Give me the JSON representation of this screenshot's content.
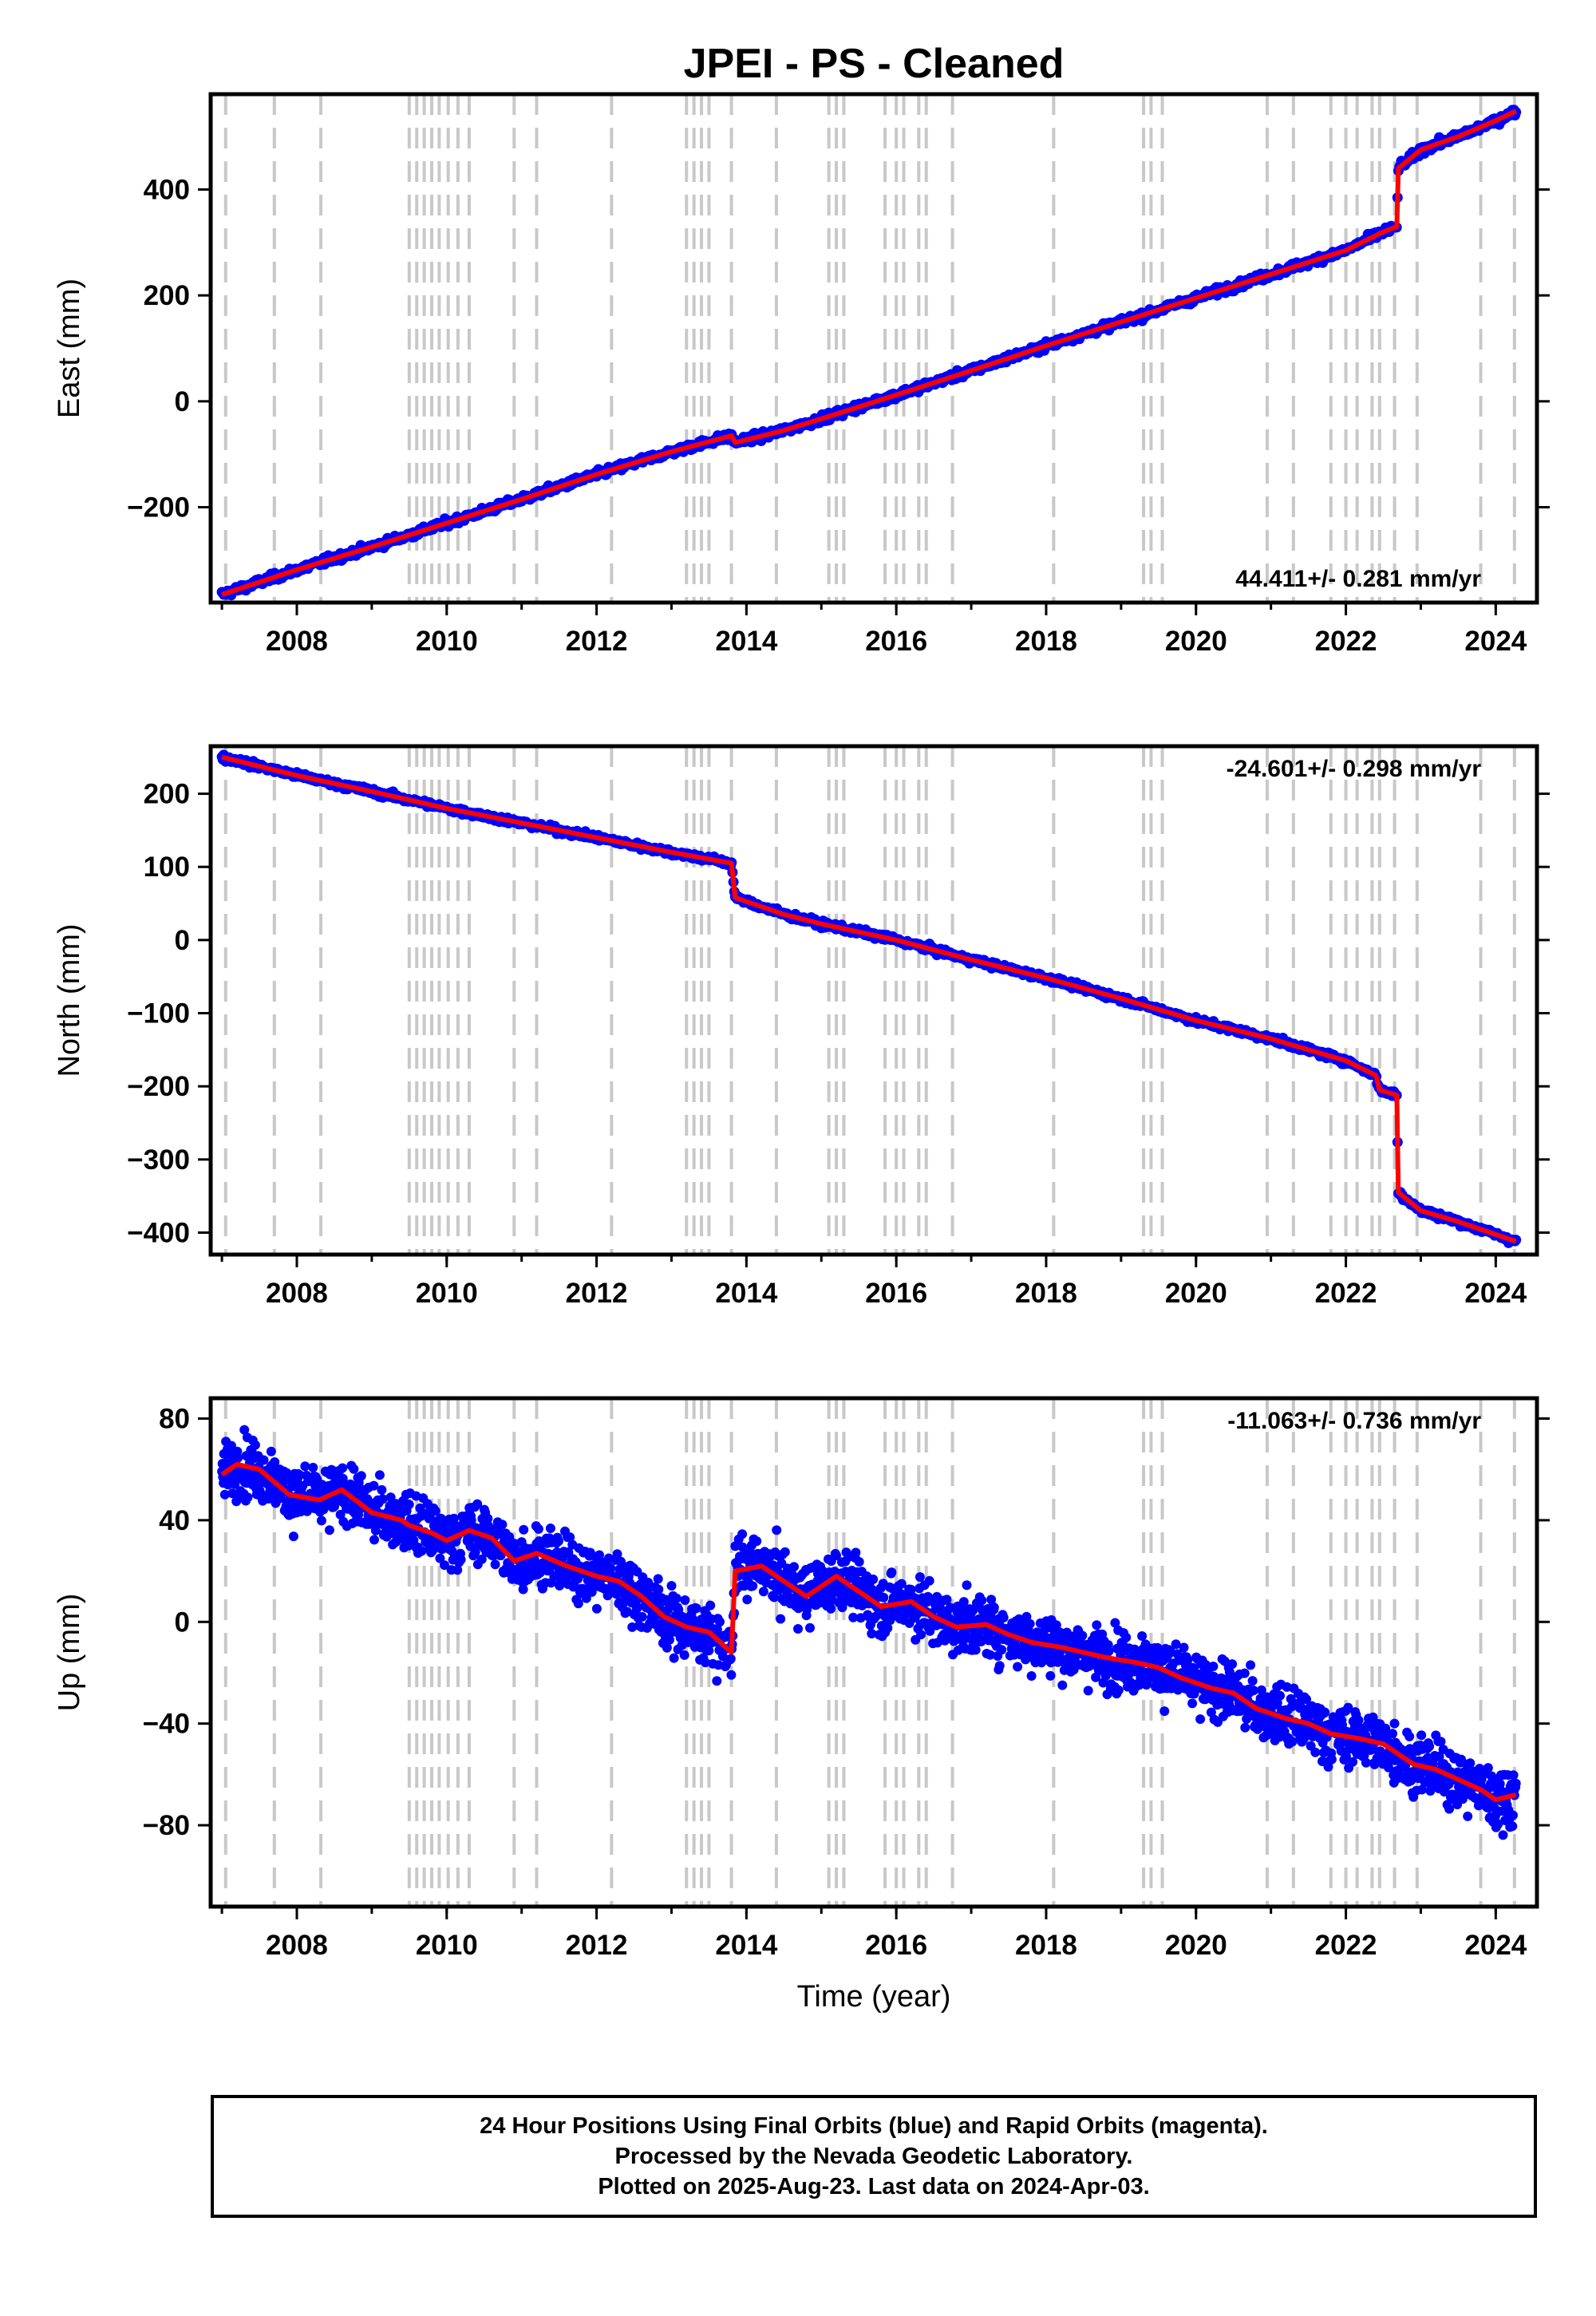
{
  "title": "JPEI  - PS - Cleaned",
  "colors": {
    "daily_positions": "#0000ff",
    "model_fit": "#ff0000",
    "event_lines": "#c8c8c8",
    "frame": "#000000"
  },
  "chart_data": [
    {
      "type": "scatter",
      "component": "east",
      "title": "JPEI  - PS - Cleaned",
      "xlabel": "",
      "ylabel": "East (mm)",
      "xlim": [
        2006.85,
        2024.55
      ],
      "ylim": [
        -380,
        580
      ],
      "x_ticks": [
        2008,
        2010,
        2012,
        2014,
        2016,
        2018,
        2020,
        2022,
        2024
      ],
      "x_tick_labels": [
        "2008",
        "2010",
        "2012",
        "2014",
        "2016",
        "2018",
        "2020",
        "2022",
        "2024"
      ],
      "y_ticks": [
        -200,
        0,
        200,
        400
      ],
      "y_tick_labels": [
        "−200",
        "0",
        "200",
        "400"
      ],
      "rate_label": "44.411+/- 0.281 mm/yr",
      "rate_label_position": "bottom-right",
      "series": [
        {
          "style": "points",
          "color": "#0000ff",
          "noise_mm": 5
        },
        {
          "style": "line",
          "color": "#ff0000",
          "x": [
            2007.0,
            2008.0,
            2009.0,
            2010.0,
            2011.0,
            2012.0,
            2013.0,
            2013.8,
            2013.85,
            2014.5,
            2015.0,
            2016.0,
            2017.0,
            2018.0,
            2019.0,
            2020.0,
            2021.0,
            2022.0,
            2022.5,
            2022.68,
            2022.7,
            2023.0,
            2023.5,
            2024.0,
            2024.27
          ],
          "y": [
            -365,
            -318,
            -275,
            -230,
            -185,
            -138,
            -95,
            -65,
            -78,
            -55,
            -33,
            12,
            58,
            105,
            150,
            195,
            240,
            285,
            320,
            330,
            440,
            475,
            500,
            530,
            548
          ]
        }
      ]
    },
    {
      "type": "scatter",
      "component": "north",
      "xlabel": "",
      "ylabel": "North (mm)",
      "xlim": [
        2006.85,
        2024.55
      ],
      "ylim": [
        -430,
        265
      ],
      "x_ticks": [
        2008,
        2010,
        2012,
        2014,
        2016,
        2018,
        2020,
        2022,
        2024
      ],
      "x_tick_labels": [
        "2008",
        "2010",
        "2012",
        "2014",
        "2016",
        "2018",
        "2020",
        "2022",
        "2024"
      ],
      "y_ticks": [
        -400,
        -300,
        -200,
        -100,
        0,
        100,
        200
      ],
      "y_tick_labels": [
        "−400",
        "−300",
        "−200",
        "−100",
        "0",
        "100",
        "200"
      ],
      "rate_label": "-24.601+/- 0.298 mm/yr",
      "rate_label_position": "top-right",
      "series": [
        {
          "style": "points",
          "color": "#0000ff",
          "noise_mm": 3
        },
        {
          "style": "line",
          "color": "#ff0000",
          "x": [
            2007.0,
            2008.0,
            2009.0,
            2010.0,
            2011.0,
            2012.0,
            2013.0,
            2013.8,
            2013.85,
            2014.5,
            2015.0,
            2016.0,
            2017.0,
            2018.0,
            2019.0,
            2020.0,
            2021.0,
            2022.0,
            2022.4,
            2022.45,
            2022.68,
            2022.7,
            2023.0,
            2023.5,
            2024.27
          ],
          "y": [
            250,
            225,
            203,
            180,
            160,
            140,
            120,
            105,
            58,
            35,
            22,
            0,
            -27,
            -52,
            -80,
            -110,
            -135,
            -165,
            -185,
            -205,
            -212,
            -345,
            -370,
            -385,
            -412
          ]
        }
      ]
    },
    {
      "type": "scatter",
      "component": "up",
      "xlabel": "Time (year)",
      "ylabel": "Up (mm)",
      "xlim": [
        2006.85,
        2024.55
      ],
      "ylim": [
        -112,
        88
      ],
      "x_ticks": [
        2008,
        2010,
        2012,
        2014,
        2016,
        2018,
        2020,
        2022,
        2024
      ],
      "x_tick_labels": [
        "2008",
        "2010",
        "2012",
        "2014",
        "2016",
        "2018",
        "2020",
        "2022",
        "2024"
      ],
      "y_ticks": [
        -80,
        -40,
        0,
        40,
        80
      ],
      "y_tick_labels": [
        "−80",
        "−40",
        "0",
        "40",
        "80"
      ],
      "rate_label": "-11.063+/- 0.736 mm/yr",
      "rate_label_position": "top-right",
      "series": [
        {
          "style": "points",
          "color": "#0000ff",
          "noise_mm": 8
        },
        {
          "style": "line",
          "color": "#ff0000",
          "x": [
            2007.0,
            2007.2,
            2007.5,
            2007.9,
            2008.3,
            2008.6,
            2009.0,
            2009.4,
            2009.5,
            2009.8,
            2010.0,
            2010.3,
            2010.6,
            2010.9,
            2011.2,
            2011.6,
            2012.0,
            2012.3,
            2012.6,
            2012.9,
            2013.2,
            2013.5,
            2013.8,
            2013.85,
            2014.2,
            2014.5,
            2014.8,
            2015.2,
            2015.5,
            2015.8,
            2016.2,
            2016.5,
            2016.8,
            2017.2,
            2017.5,
            2017.8,
            2018.2,
            2018.5,
            2018.8,
            2019.2,
            2019.5,
            2019.8,
            2020.2,
            2020.5,
            2020.8,
            2021.2,
            2021.5,
            2021.8,
            2022.2,
            2022.5,
            2022.7,
            2022.9,
            2023.2,
            2023.5,
            2023.8,
            2024.0,
            2024.27
          ],
          "y": [
            58,
            62,
            60,
            50,
            48,
            52,
            43,
            40,
            38,
            35,
            32,
            36,
            33,
            24,
            27,
            22,
            18,
            16,
            10,
            2,
            -2,
            -4,
            -12,
            20,
            22,
            16,
            10,
            18,
            12,
            6,
            8,
            2,
            -2,
            -1,
            -5,
            -8,
            -10,
            -12,
            -14,
            -16,
            -18,
            -22,
            -26,
            -28,
            -34,
            -38,
            -40,
            -44,
            -46,
            -48,
            -52,
            -56,
            -58,
            -62,
            -66,
            -70,
            -68
          ]
        }
      ]
    }
  ],
  "event_lines_years": [
    2007.05,
    2007.7,
    2008.32,
    2009.5,
    2009.6,
    2009.7,
    2009.8,
    2009.9,
    2010.02,
    2010.15,
    2010.3,
    2010.9,
    2011.2,
    2012.2,
    2013.2,
    2013.3,
    2013.4,
    2013.5,
    2013.8,
    2014.4,
    2015.1,
    2015.2,
    2015.3,
    2015.85,
    2016.0,
    2016.1,
    2016.3,
    2016.4,
    2016.75,
    2018.1,
    2019.3,
    2019.4,
    2019.55,
    2020.95,
    2021.3,
    2021.8,
    2022.0,
    2022.15,
    2022.35,
    2022.45,
    2022.65,
    2022.95,
    2023.8,
    2024.25
  ],
  "footer": {
    "line1": "24 Hour Positions Using Final Orbits (blue) and Rapid Orbits (magenta).",
    "line2": "Processed by the Nevada Geodetic Laboratory.",
    "line3": "Plotted on 2025-Aug-23. Last data on 2024-Apr-03."
  }
}
